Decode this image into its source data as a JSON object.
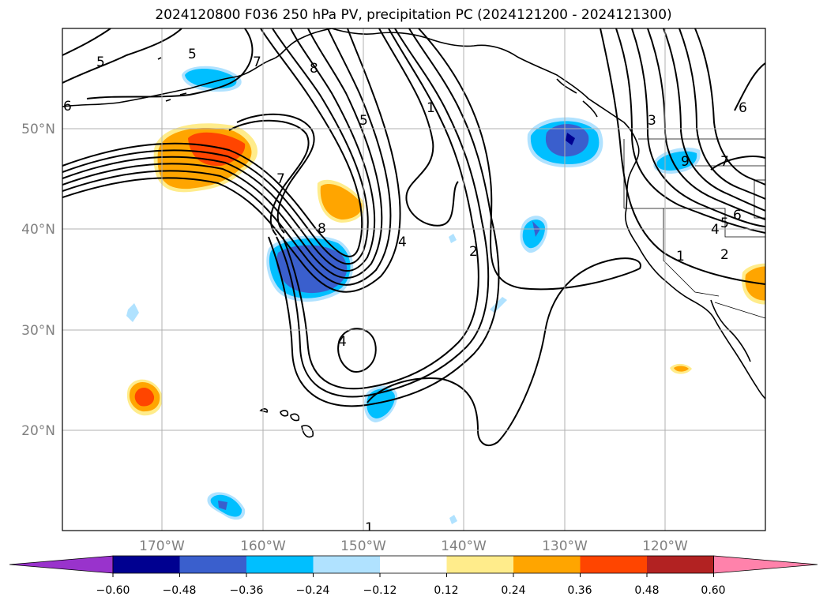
{
  "title": "2024120800 F036 250 hPa PV, precipitation PC (2024121200 - 2024121300)",
  "map": {
    "lat_labels": [
      "50°N",
      "40°N",
      "30°N",
      "20°N"
    ],
    "lon_labels": [
      "170°W",
      "160°W",
      "150°W",
      "140°W",
      "130°W",
      "120°W"
    ],
    "contour_labels": [
      "5",
      "5",
      "6",
      "7",
      "8",
      "1",
      "5",
      "3",
      "6",
      "7",
      "9",
      "7",
      "8",
      "4",
      "2",
      "4",
      "1",
      "2",
      "4",
      "5",
      "6",
      "1"
    ],
    "land_color": "#000000"
  },
  "colorbar": {
    "tick_labels": [
      "−0.60",
      "−0.48",
      "−0.36",
      "−0.24",
      "−0.12",
      "0.12",
      "0.24",
      "0.36",
      "0.48",
      "0.60"
    ],
    "colors": [
      "#9933cc",
      "#000090",
      "#3a5fcd",
      "#00bfff",
      "#b0e2ff",
      "#ffffff",
      "#ffec8b",
      "#ffa500",
      "#ff4500",
      "#b22222",
      "#ff82ab"
    ]
  }
}
